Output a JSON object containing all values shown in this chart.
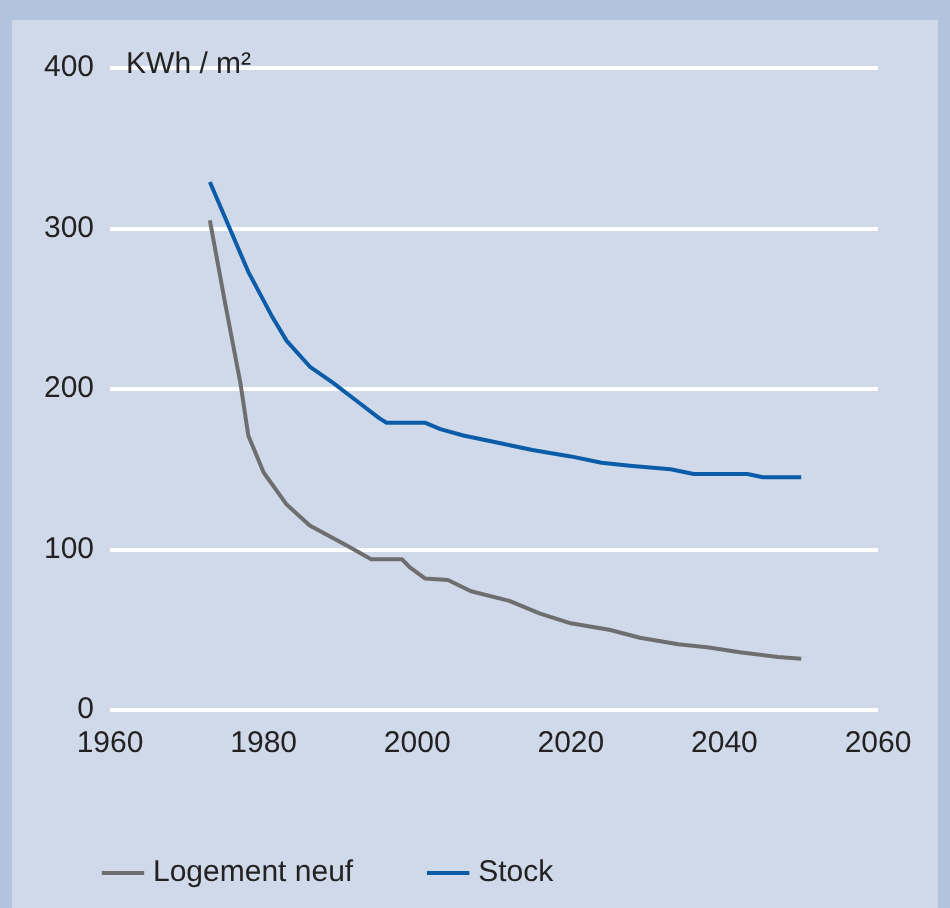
{
  "chart_data": {
    "type": "line",
    "ylabel": "KWh / m²",
    "xlim": [
      1960,
      2060
    ],
    "xticks": [
      1960,
      1980,
      2000,
      2020,
      2040,
      2060
    ],
    "ylim": [
      0,
      400
    ],
    "yticks": [
      0,
      100,
      200,
      300,
      400
    ],
    "grid": "y",
    "legend": "bottom",
    "marker": "none",
    "line_style": "solid",
    "series": [
      {
        "name": "Logement neuf",
        "color": "#6e6e6e",
        "x": [
          1973,
          1975,
          1977,
          1978,
          1980,
          1983,
          1986,
          1991,
          1994,
          1998,
          1999,
          2001,
          2004,
          2007,
          2012,
          2016,
          2020,
          2025,
          2029,
          2034,
          2038,
          2042,
          2047,
          2050
        ],
        "values": [
          305,
          253,
          203,
          171,
          148,
          128,
          115,
          102,
          94,
          94,
          89,
          82,
          81,
          74,
          68,
          60,
          54,
          50,
          45,
          41,
          39,
          36,
          33,
          32
        ]
      },
      {
        "name": "Stock",
        "color": "#0a5ca8",
        "x": [
          1973,
          1978,
          1981,
          1983,
          1986,
          1989,
          1992,
          1995,
          1996,
          2001,
          2003,
          2006,
          2011,
          2015,
          2020,
          2024,
          2028,
          2033,
          2036,
          2043,
          2045,
          2050
        ],
        "values": [
          329,
          273,
          246,
          230,
          214,
          204,
          193,
          182,
          179,
          179,
          175,
          171,
          166,
          162,
          158,
          154,
          152,
          150,
          147,
          147,
          145,
          145
        ]
      }
    ]
  }
}
